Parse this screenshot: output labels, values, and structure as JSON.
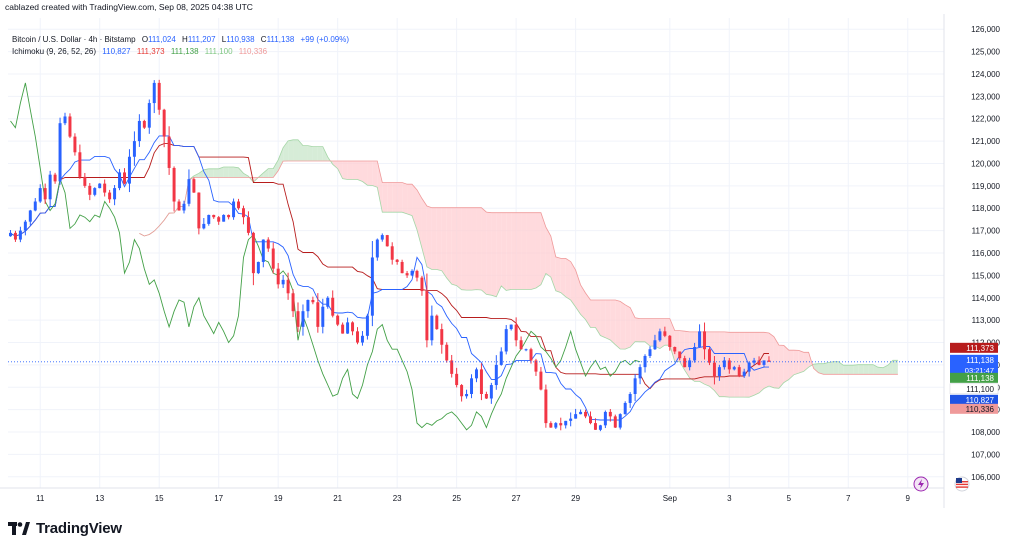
{
  "header": {
    "text": "cablazed created with TradingView.com, Sep 08, 2025 04:38 UTC"
  },
  "legend": {
    "symbol": "Bitcoin / U.S. Dollar · 4h · Bitstamp",
    "ohlc": [
      {
        "k": "O",
        "v": "111,024"
      },
      {
        "k": "H",
        "v": "111,207"
      },
      {
        "k": "L",
        "v": "110,938"
      },
      {
        "k": "C",
        "v": "111,138"
      }
    ],
    "change": "+99 (+0.09%)",
    "ichimoku_label": "Ichimoku (9, 26, 52, 26)",
    "ichimoku_values": [
      {
        "v": "110,827",
        "color": "#2962ff"
      },
      {
        "v": "111,373",
        "color": "#e53935"
      },
      {
        "v": "111,138",
        "color": "#43a047"
      },
      {
        "v": "111,100",
        "color": "#81c784"
      },
      {
        "v": "110,336",
        "color": "#ef9a9a"
      }
    ]
  },
  "price_tags": [
    {
      "value": 111373,
      "label": "111,373",
      "bg": "#b71c1c",
      "fg": "#ffffff",
      "offset": -14
    },
    {
      "value": 111138,
      "label": "111,138",
      "bg": "#2962ff",
      "fg": "#ffffff",
      "offset": -2,
      "sub": "03:21:47"
    },
    {
      "value": 111138,
      "label": "111,138",
      "bg": "#43a047",
      "fg": "#ffffff",
      "offset": 16
    },
    {
      "value": 111100,
      "label": "111,100",
      "bg": "#ffffff",
      "fg": "#131722",
      "offset": 27
    },
    {
      "value": 110827,
      "label": "110,827",
      "bg": "#1e53e5",
      "fg": "#ffffff",
      "offset": 38
    },
    {
      "value": 110336,
      "label": "110,336",
      "bg": "#ef9a9a",
      "fg": "#131722",
      "offset": 47
    }
  ],
  "footer": {
    "logo_text": "TradingView",
    "logo_icon": "tradingview-logo-icon"
  },
  "icons": {
    "replay": "lightning-icon",
    "flag": "us-flag-icon"
  },
  "chart_data": {
    "type": "candlestick",
    "title": "Bitcoin / U.S. Dollar · 4h · Bitstamp",
    "ylim": [
      105500,
      126500
    ],
    "y_ticks": [
      106000,
      107000,
      108000,
      109000,
      110000,
      111000,
      112000,
      113000,
      114000,
      115000,
      116000,
      117000,
      118000,
      119000,
      120000,
      121000,
      122000,
      123000,
      124000,
      125000,
      126000
    ],
    "x_ticks": [
      {
        "label": "11",
        "bar": 6
      },
      {
        "label": "13",
        "bar": 18
      },
      {
        "label": "15",
        "bar": 30
      },
      {
        "label": "17",
        "bar": 42
      },
      {
        "label": "19",
        "bar": 54
      },
      {
        "label": "21",
        "bar": 66
      },
      {
        "label": "23",
        "bar": 78
      },
      {
        "label": "25",
        "bar": 90
      },
      {
        "label": "27",
        "bar": 102
      },
      {
        "label": "29",
        "bar": 114
      },
      {
        "label": "Sep",
        "bar": 133
      },
      {
        "label": "3",
        "bar": 145
      },
      {
        "label": "5",
        "bar": 157
      },
      {
        "label": "7",
        "bar": 169
      },
      {
        "label": "9",
        "bar": 181
      }
    ],
    "total_slots": 188,
    "last_price": 111138,
    "colors": {
      "up": "#2962ff",
      "down": "#f23645",
      "tenkan": "#2962ff",
      "kijun": "#b71c1c",
      "chikou": "#43a047",
      "cloud_bull": "#c8e6c9",
      "cloud_bear": "#ffcdd2"
    },
    "closes": [
      116900,
      116600,
      117000,
      117400,
      117900,
      118300,
      118900,
      118400,
      119500,
      119200,
      121800,
      122100,
      121200,
      120500,
      119400,
      119000,
      118600,
      118900,
      119100,
      118700,
      118400,
      118900,
      119600,
      119100,
      120300,
      121000,
      121900,
      121600,
      122700,
      123600,
      122400,
      121200,
      119800,
      118300,
      117900,
      118200,
      119300,
      118700,
      117100,
      117300,
      117700,
      117600,
      117400,
      117700,
      117600,
      118300,
      118000,
      117600,
      116900,
      115100,
      115600,
      116600,
      116200,
      115300,
      114600,
      114800,
      114200,
      113400,
      112700,
      113400,
      113900,
      113800,
      112700,
      113600,
      114000,
      113200,
      112800,
      112400,
      112900,
      112500,
      112000,
      112300,
      113200,
      115800,
      116600,
      116800,
      116300,
      115700,
      115600,
      115100,
      115000,
      115200,
      114900,
      114300,
      112100,
      113200,
      112600,
      111900,
      111200,
      110600,
      110100,
      109600,
      109700,
      110400,
      110800,
      109700,
      109500,
      110100,
      111000,
      111600,
      112600,
      112800,
      112100,
      111700,
      111700,
      111200,
      110700,
      109900,
      108400,
      108200,
      108400,
      108300,
      108500,
      108600,
      108800,
      108900,
      108700,
      108400,
      108100,
      108300,
      108900,
      108700,
      108200,
      108800,
      109300,
      109700,
      110400,
      110900,
      111400,
      111700,
      112100,
      112500,
      112300,
      111800,
      111600,
      111300,
      110900,
      111200,
      111800,
      112500,
      111700,
      111100,
      110500,
      110900,
      111200,
      110800,
      110900,
      110500,
      110700,
      111100,
      111200,
      111000,
      111200,
      111138
    ]
  }
}
